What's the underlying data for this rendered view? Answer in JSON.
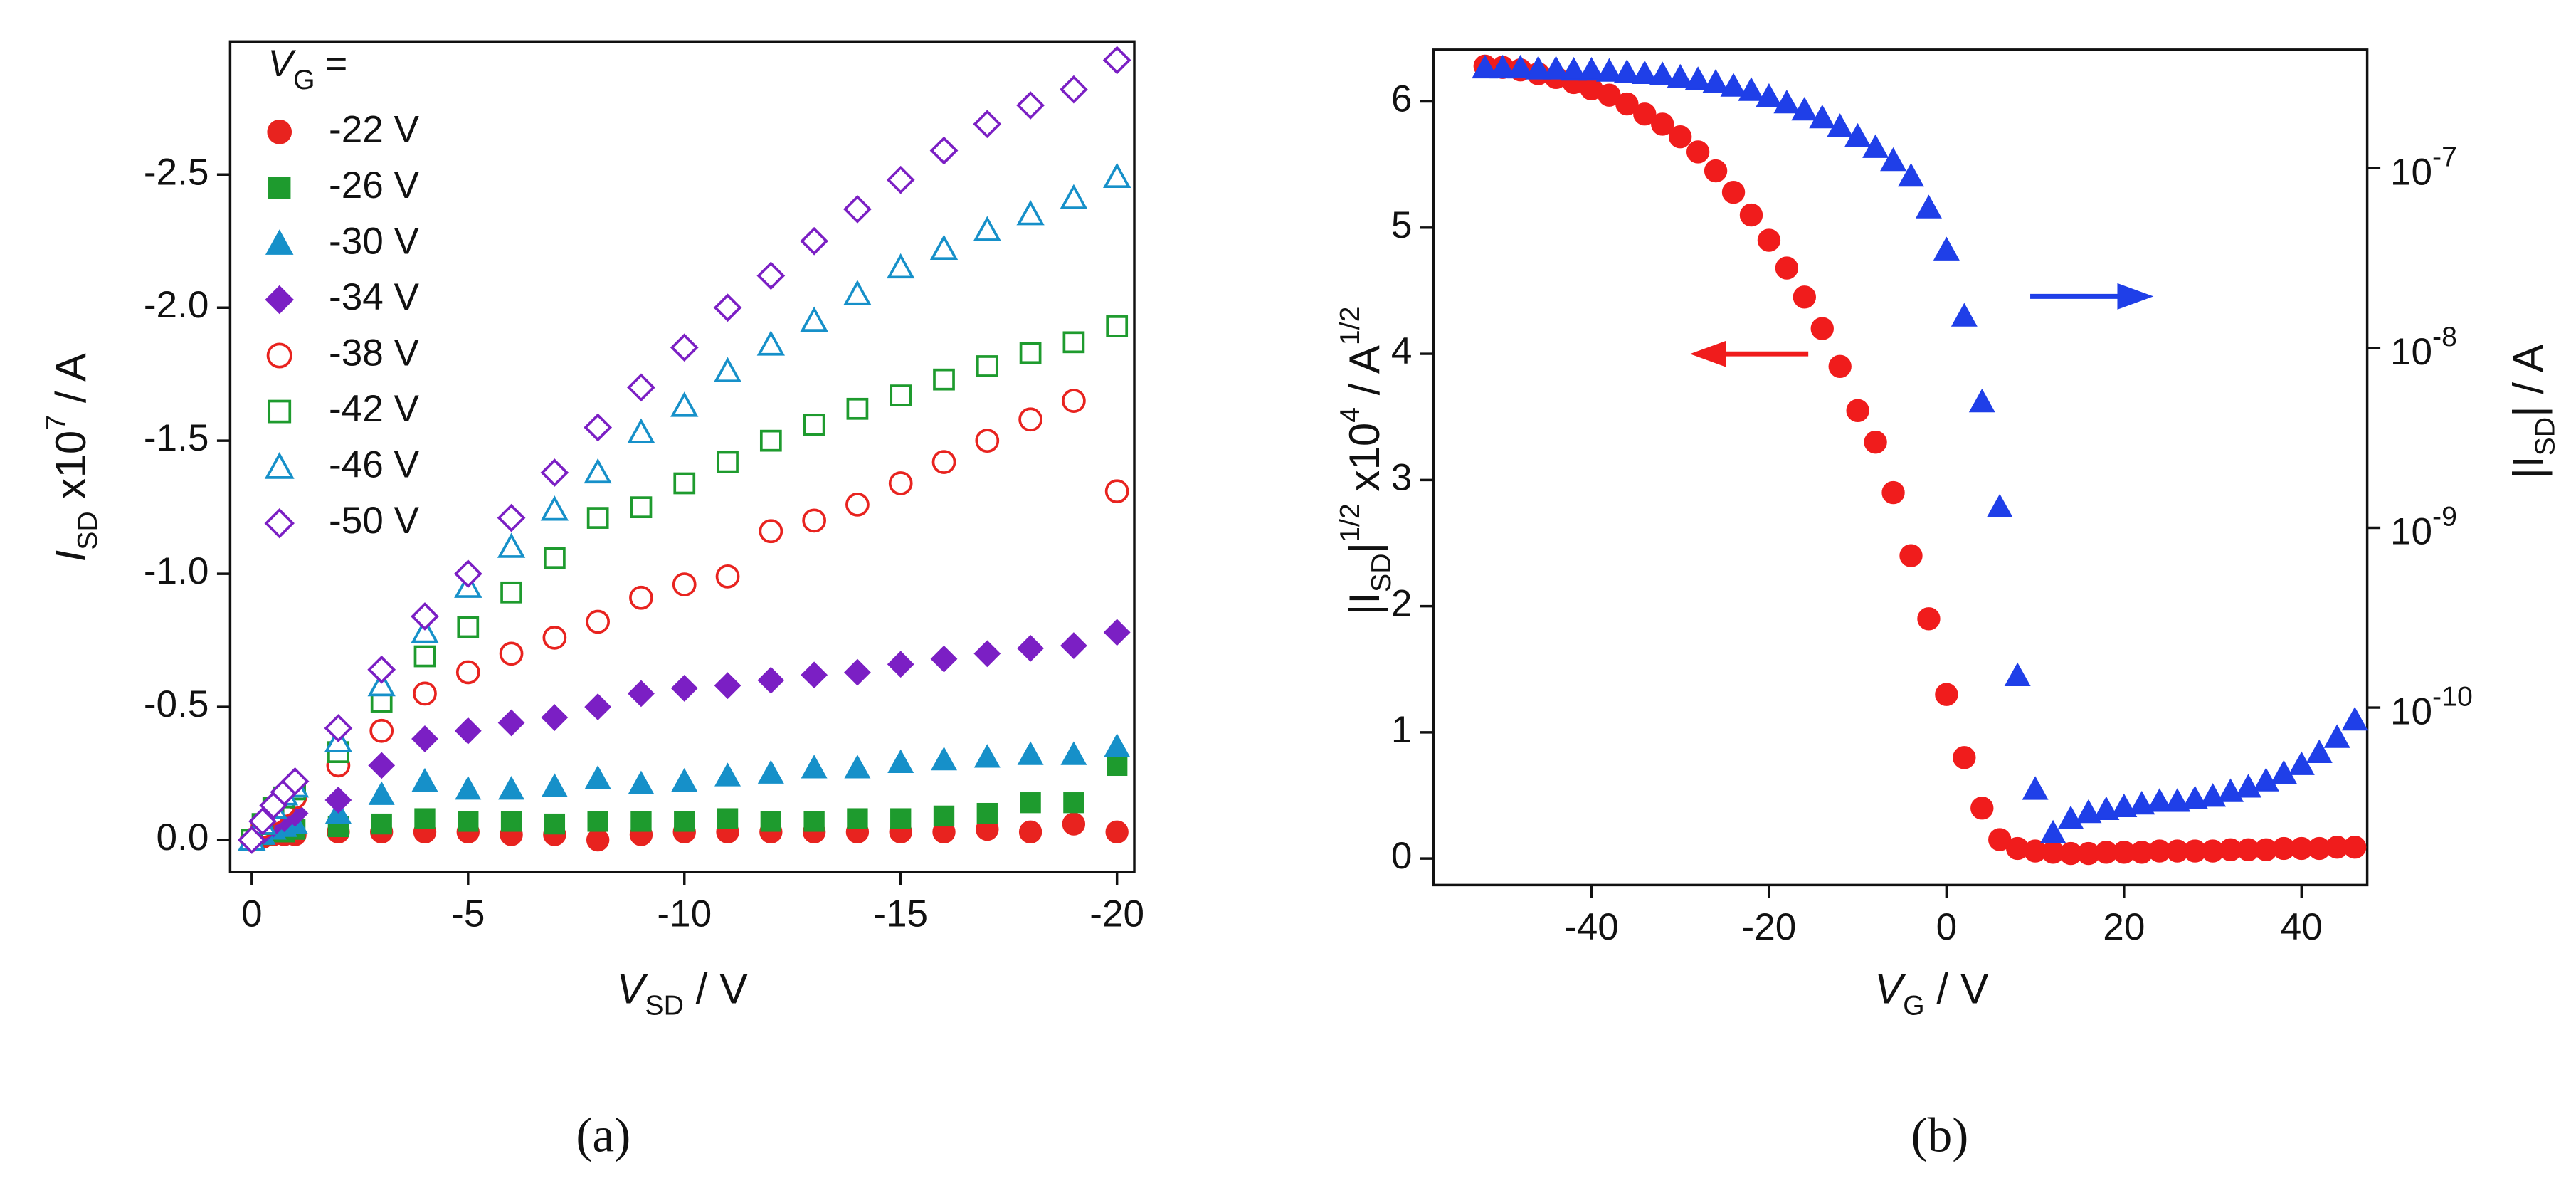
{
  "chart_data": [
    {
      "type": "scatter",
      "xlabel": [
        "V",
        "SD",
        " / V"
      ],
      "ylabel": [
        "I",
        "SD",
        " x10",
        "7",
        " / A"
      ],
      "legend_title": [
        "V",
        "G",
        " ="
      ],
      "panel": "(a)",
      "legend": "upper left",
      "xlim": [
        0.5,
        -20.4
      ],
      "xticks": [
        0,
        -5,
        -10,
        -15,
        -20
      ],
      "ylim": [
        0.12,
        -3.0
      ],
      "yticks": [
        {
          "value": 0,
          "label": "0.0"
        },
        -0.5,
        {
          "value": -1,
          "label": "-1.0"
        },
        -1.5,
        {
          "value": -2,
          "label": "-2.0"
        },
        -2.5
      ],
      "x": [
        0,
        -0.25,
        -0.5,
        -0.75,
        -1,
        -2,
        -3,
        -4,
        -5,
        -6,
        -7,
        -8,
        -9,
        -10,
        -11,
        -12,
        -13,
        -14,
        -15,
        -16,
        -17,
        -18,
        -19,
        -20
      ],
      "series": [
        {
          "name": "-22 V",
          "color": "#e8231f",
          "marker": "circle",
          "filled": true,
          "values": [
            0,
            -0.01,
            -0.02,
            -0.02,
            -0.02,
            -0.03,
            -0.03,
            -0.03,
            -0.03,
            -0.02,
            -0.02,
            0,
            -0.02,
            -0.03,
            -0.03,
            -0.03,
            -0.03,
            -0.03,
            -0.03,
            -0.03,
            -0.04,
            -0.03,
            -0.06,
            -0.03
          ]
        },
        {
          "name": "-26 V",
          "color": "#1e9b2e",
          "marker": "square",
          "filled": true,
          "values": [
            0,
            -0.02,
            -0.03,
            -0.03,
            -0.04,
            -0.05,
            -0.06,
            -0.08,
            -0.07,
            -0.07,
            -0.06,
            -0.07,
            -0.07,
            -0.07,
            -0.08,
            -0.07,
            -0.07,
            -0.08,
            -0.08,
            -0.09,
            -0.1,
            -0.14,
            -0.14,
            -0.28
          ]
        },
        {
          "name": "-30 V",
          "color": "#1690c9",
          "marker": "triangle",
          "filled": true,
          "values": [
            0,
            -0.02,
            -0.04,
            -0.05,
            -0.06,
            -0.1,
            -0.17,
            -0.22,
            -0.19,
            -0.19,
            -0.2,
            -0.23,
            -0.21,
            -0.22,
            -0.24,
            -0.25,
            -0.27,
            -0.27,
            -0.29,
            -0.3,
            -0.31,
            -0.32,
            -0.32,
            -0.35
          ]
        },
        {
          "name": "-34 V",
          "color": "#7b1fc4",
          "marker": "diamond",
          "filled": true,
          "values": [
            0,
            -0.03,
            -0.06,
            -0.08,
            -0.1,
            -0.15,
            -0.28,
            -0.38,
            -0.41,
            -0.44,
            -0.46,
            -0.5,
            -0.55,
            -0.57,
            -0.58,
            -0.6,
            -0.62,
            -0.63,
            -0.66,
            -0.68,
            -0.7,
            -0.72,
            -0.73,
            -0.78
          ]
        },
        {
          "name": "-38 V",
          "color": "#e8231f",
          "marker": "circle",
          "filled": false,
          "values": [
            0,
            -0.05,
            -0.1,
            -0.13,
            -0.16,
            -0.28,
            -0.41,
            -0.55,
            -0.63,
            -0.7,
            -0.76,
            -0.82,
            -0.91,
            -0.96,
            -0.99,
            -1.16,
            -1.2,
            -1.26,
            -1.34,
            -1.42,
            -1.5,
            -1.58,
            -1.65,
            -1.31
          ]
        },
        {
          "name": "-42 V",
          "color": "#1e9b2e",
          "marker": "square",
          "filled": false,
          "values": [
            0,
            -0.06,
            -0.12,
            -0.16,
            -0.19,
            -0.33,
            -0.52,
            -0.69,
            -0.8,
            -0.93,
            -1.06,
            -1.21,
            -1.25,
            -1.34,
            -1.42,
            -1.5,
            -1.56,
            -1.62,
            -1.67,
            -1.73,
            -1.78,
            -1.83,
            -1.87,
            -1.93
          ]
        },
        {
          "name": "-46 V",
          "color": "#1690c9",
          "marker": "triangle",
          "filled": false,
          "values": [
            0,
            -0.06,
            -0.12,
            -0.17,
            -0.2,
            -0.37,
            -0.58,
            -0.78,
            -0.95,
            -1.1,
            -1.24,
            -1.38,
            -1.53,
            -1.63,
            -1.76,
            -1.86,
            -1.95,
            -2.05,
            -2.15,
            -2.22,
            -2.29,
            -2.35,
            -2.41,
            -2.49
          ]
        },
        {
          "name": "-50 V",
          "color": "#7b1fc4",
          "marker": "diamond",
          "filled": false,
          "values": [
            0,
            -0.07,
            -0.13,
            -0.18,
            -0.22,
            -0.42,
            -0.64,
            -0.84,
            -1.0,
            -1.21,
            -1.38,
            -1.55,
            -1.7,
            -1.85,
            -2.0,
            -2.12,
            -2.25,
            -2.37,
            -2.48,
            -2.59,
            -2.69,
            -2.76,
            -2.82,
            -2.93
          ]
        }
      ]
    },
    {
      "type": "scatter",
      "xlabel": [
        "V",
        "G",
        " / V"
      ],
      "ylabel": [
        "|I",
        "SD",
        "|",
        "1/2",
        " x10",
        "4",
        " / A",
        "1/2"
      ],
      "y2label": [
        "|I",
        "SD",
        "| / A"
      ],
      "panel": "(b)",
      "xlim": [
        -57.8,
        47.4
      ],
      "xticks": [
        -40,
        -20,
        0,
        20,
        40
      ],
      "ylim": [
        -0.21,
        6.41
      ],
      "yticks": [
        0,
        1,
        2,
        3,
        4,
        5,
        6
      ],
      "y2lim": [
        1.03e-11,
        4.56e-07
      ],
      "y2log": true,
      "y2ticks": [
        {
          "value": 1e-10,
          "label": [
            "10",
            "-10"
          ]
        },
        {
          "value": 1e-09,
          "label": [
            "10",
            "-9"
          ]
        },
        {
          "value": 1e-08,
          "label": [
            "10",
            "-8"
          ]
        },
        {
          "value": 1e-07,
          "label": [
            "10",
            "-7"
          ]
        }
      ],
      "x": [
        -52,
        -50,
        -48,
        -46,
        -44,
        -42,
        -40,
        -38,
        -36,
        -34,
        -32,
        -30,
        -28,
        -26,
        -24,
        -22,
        -20,
        -18,
        -16,
        -14,
        -12,
        -10,
        -8,
        -6,
        -4,
        -2,
        0,
        2,
        4,
        6,
        8,
        10,
        12,
        14,
        16,
        18,
        20,
        22,
        24,
        26,
        28,
        30,
        32,
        34,
        36,
        38,
        40,
        42,
        44,
        46
      ],
      "series": [
        {
          "color": "#f01c1c",
          "marker": "circle",
          "filled": true,
          "values": [
            6.28,
            6.27,
            6.25,
            6.22,
            6.19,
            6.15,
            6.1,
            6.05,
            5.98,
            5.9,
            5.82,
            5.72,
            5.6,
            5.45,
            5.28,
            5.1,
            4.9,
            4.68,
            4.45,
            4.2,
            3.9,
            3.55,
            3.3,
            2.9,
            2.4,
            1.9,
            1.3,
            0.8,
            0.4,
            0.15,
            0.08,
            0.06,
            0.05,
            0.04,
            0.04,
            0.05,
            0.05,
            0.05,
            0.06,
            0.06,
            0.06,
            0.06,
            0.07,
            0.07,
            0.07,
            0.08,
            0.08,
            0.08,
            0.09,
            0.09
          ]
        },
        {
          "color": "#1f3fe8",
          "marker": "triangle",
          "filled": true,
          "axis": "y2",
          "values": [
            3.6e-07,
            3.6e-07,
            3.6e-07,
            3.55e-07,
            3.55e-07,
            3.5e-07,
            3.5e-07,
            3.45e-07,
            3.4e-07,
            3.35e-07,
            3.3e-07,
            3.2e-07,
            3.1e-07,
            3e-07,
            2.85e-07,
            2.7e-07,
            2.5e-07,
            2.3e-07,
            2.1e-07,
            1.9e-07,
            1.7e-07,
            1.5e-07,
            1.3e-07,
            1.1e-07,
            9e-08,
            6e-08,
            3.5e-08,
            1.5e-08,
            5e-09,
            1.3e-09,
            1.5e-10,
            3.5e-11,
            2e-11,
            2.4e-11,
            2.6e-11,
            2.7e-11,
            2.8e-11,
            2.9e-11,
            3e-11,
            3e-11,
            3.1e-11,
            3.2e-11,
            3.4e-11,
            3.6e-11,
            3.9e-11,
            4.3e-11,
            4.8e-11,
            5.6e-11,
            6.8e-11,
            8.5e-11
          ]
        }
      ]
    }
  ]
}
